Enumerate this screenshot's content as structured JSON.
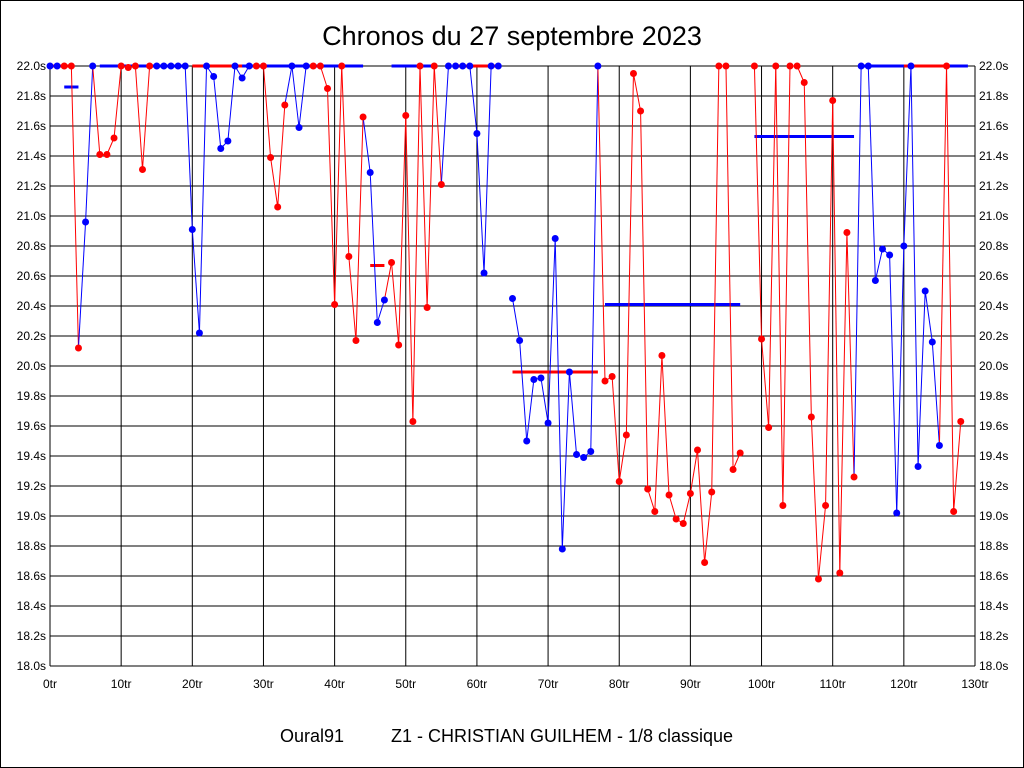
{
  "chart_data": {
    "type": "line",
    "title": "Chronos du 27 septembre 2023",
    "footer_left": "Oural91",
    "footer_right": "Z1 - CHRISTIAN GUILHEM - 1/8 classique",
    "xlim": [
      0,
      130
    ],
    "ylim": [
      18.0,
      22.0
    ],
    "x_ticks": [
      "0tr",
      "10tr",
      "20tr",
      "30tr",
      "40tr",
      "50tr",
      "60tr",
      "70tr",
      "80tr",
      "90tr",
      "100tr",
      "110tr",
      "120tr",
      "130tr"
    ],
    "y_ticks": [
      "18.0s",
      "18.2s",
      "18.4s",
      "18.6s",
      "18.8s",
      "19.0s",
      "19.2s",
      "19.4s",
      "19.6s",
      "19.8s",
      "20.0s",
      "20.2s",
      "20.4s",
      "20.6s",
      "20.8s",
      "21.0s",
      "21.2s",
      "21.4s",
      "21.6s",
      "21.8s",
      "22.0s"
    ],
    "grid": true,
    "colors": {
      "red": "#ff0000",
      "blue": "#0000ff"
    },
    "laps": [
      [
        22.0,
        "b"
      ],
      [
        22.0,
        "b"
      ],
      [
        22.0,
        "r"
      ],
      [
        22.0,
        "r"
      ],
      [
        20.12,
        "r"
      ],
      [
        20.96,
        "b"
      ],
      [
        22.0,
        "b"
      ],
      [
        21.41,
        "r"
      ],
      [
        21.41,
        "r"
      ],
      [
        21.52,
        "r"
      ],
      [
        22.0,
        "r"
      ],
      [
        21.99,
        "r"
      ],
      [
        22.0,
        "r"
      ],
      [
        21.31,
        "r"
      ],
      [
        22.0,
        "r"
      ],
      [
        22.0,
        "b"
      ],
      [
        22.0,
        "b"
      ],
      [
        22.0,
        "b"
      ],
      [
        22.0,
        "b"
      ],
      [
        22.0,
        "b"
      ],
      [
        20.91,
        "b"
      ],
      [
        20.22,
        "b"
      ],
      [
        22.0,
        "b"
      ],
      [
        21.93,
        "b"
      ],
      [
        21.45,
        "b"
      ],
      [
        21.5,
        "b"
      ],
      [
        22.0,
        "b"
      ],
      [
        21.92,
        "b"
      ],
      [
        22.0,
        "b"
      ],
      [
        22.0,
        "r"
      ],
      [
        22.0,
        "r"
      ],
      [
        21.39,
        "r"
      ],
      [
        21.06,
        "r"
      ],
      [
        21.74,
        "r"
      ],
      [
        22.0,
        "b"
      ],
      [
        21.59,
        "b"
      ],
      [
        22.0,
        "b"
      ],
      [
        22.0,
        "r"
      ],
      [
        22.0,
        "r"
      ],
      [
        21.85,
        "r"
      ],
      [
        20.41,
        "r"
      ],
      [
        22.0,
        "r"
      ],
      [
        20.73,
        "r"
      ],
      [
        20.17,
        "r"
      ],
      [
        21.66,
        "r"
      ],
      [
        21.29,
        "b"
      ],
      [
        20.29,
        "b"
      ],
      [
        20.44,
        "b"
      ],
      [
        20.69,
        "r"
      ],
      [
        20.14,
        "r"
      ],
      [
        21.67,
        "r"
      ],
      [
        19.63,
        "r"
      ],
      [
        22.0,
        "r"
      ],
      [
        20.39,
        "r"
      ],
      [
        22.0,
        "r"
      ],
      [
        21.21,
        "r"
      ],
      [
        22.0,
        "b"
      ],
      [
        22.0,
        "b"
      ],
      [
        22.0,
        "b"
      ],
      [
        22.0,
        "b"
      ],
      [
        21.55,
        "b"
      ],
      [
        20.62,
        "b"
      ],
      [
        22.0,
        "b"
      ],
      [
        22.0,
        "b"
      ],
      null,
      [
        20.45,
        "b"
      ],
      [
        20.17,
        "b"
      ],
      [
        19.5,
        "b"
      ],
      [
        19.91,
        "b"
      ],
      [
        19.92,
        "b"
      ],
      [
        19.62,
        "b"
      ],
      [
        20.85,
        "b"
      ],
      [
        18.78,
        "b"
      ],
      [
        19.96,
        "b"
      ],
      [
        19.41,
        "b"
      ],
      [
        19.39,
        "b"
      ],
      [
        19.43,
        "b"
      ],
      [
        22.0,
        "b"
      ],
      [
        19.9,
        "r"
      ],
      [
        19.93,
        "r"
      ],
      [
        19.23,
        "r"
      ],
      [
        19.54,
        "r"
      ],
      [
        21.95,
        "r"
      ],
      [
        21.7,
        "r"
      ],
      [
        19.18,
        "r"
      ],
      [
        19.03,
        "r"
      ],
      [
        20.07,
        "r"
      ],
      [
        19.14,
        "r"
      ],
      [
        18.98,
        "r"
      ],
      [
        18.95,
        "r"
      ],
      [
        19.15,
        "r"
      ],
      [
        19.44,
        "r"
      ],
      [
        18.69,
        "r"
      ],
      [
        19.16,
        "r"
      ],
      [
        22.0,
        "r"
      ],
      [
        22.0,
        "r"
      ],
      [
        19.31,
        "r"
      ],
      [
        19.42,
        "r"
      ],
      null,
      [
        22.0,
        "r"
      ],
      [
        20.18,
        "r"
      ],
      [
        19.59,
        "r"
      ],
      [
        22.0,
        "r"
      ],
      [
        19.07,
        "r"
      ],
      [
        22.0,
        "r"
      ],
      [
        22.0,
        "r"
      ],
      [
        21.89,
        "r"
      ],
      [
        19.66,
        "r"
      ],
      [
        18.58,
        "r"
      ],
      [
        19.07,
        "r"
      ],
      [
        21.77,
        "r"
      ],
      [
        18.62,
        "r"
      ],
      [
        20.89,
        "r"
      ],
      [
        19.26,
        "r"
      ],
      [
        22.0,
        "b"
      ],
      [
        22.0,
        "b"
      ],
      [
        20.57,
        "b"
      ],
      [
        20.78,
        "b"
      ],
      [
        20.74,
        "b"
      ],
      [
        19.02,
        "b"
      ],
      [
        20.8,
        "b"
      ],
      [
        22.0,
        "b"
      ],
      [
        19.33,
        "b"
      ],
      [
        20.5,
        "b"
      ],
      [
        20.16,
        "b"
      ],
      [
        19.47,
        "b"
      ],
      [
        22.0,
        "r"
      ],
      [
        19.03,
        "r"
      ],
      [
        19.63,
        "r"
      ]
    ],
    "averages": [
      {
        "from": 2,
        "to": 4,
        "value": 21.86,
        "color": "b"
      },
      {
        "from": 45,
        "to": 47,
        "value": 20.67,
        "color": "r"
      },
      {
        "from": 65,
        "to": 77,
        "value": 19.96,
        "color": "r"
      },
      {
        "from": 78,
        "to": 97,
        "value": 20.41,
        "color": "b"
      },
      {
        "from": 99,
        "to": 113,
        "value": 21.53,
        "color": "b"
      },
      {
        "from": 0,
        "to": 3,
        "value": 22.0,
        "color": "r"
      },
      {
        "from": 7,
        "to": 19,
        "value": 22.0,
        "color": "b"
      },
      {
        "from": 20,
        "to": 30,
        "value": 22.0,
        "color": "r"
      },
      {
        "from": 27,
        "to": 44,
        "value": 22.0,
        "color": "b"
      },
      {
        "from": 48,
        "to": 54,
        "value": 22.0,
        "color": "b"
      },
      {
        "from": 57,
        "to": 63,
        "value": 22.0,
        "color": "r"
      },
      {
        "from": 114,
        "to": 129,
        "value": 22.0,
        "color": "b"
      },
      {
        "from": 120,
        "to": 126,
        "value": 22.0,
        "color": "r"
      }
    ]
  }
}
